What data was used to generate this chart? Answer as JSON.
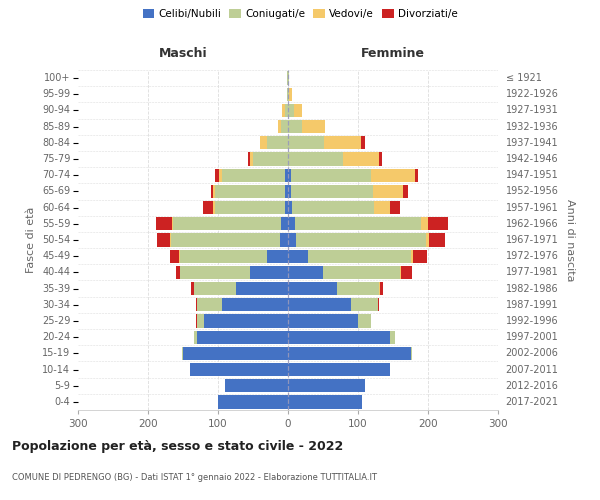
{
  "age_groups": [
    "0-4",
    "5-9",
    "10-14",
    "15-19",
    "20-24",
    "25-29",
    "30-34",
    "35-39",
    "40-44",
    "45-49",
    "50-54",
    "55-59",
    "60-64",
    "65-69",
    "70-74",
    "75-79",
    "80-84",
    "85-89",
    "90-94",
    "95-99",
    "100+"
  ],
  "birth_years": [
    "2017-2021",
    "2012-2016",
    "2007-2011",
    "2002-2006",
    "1997-2001",
    "1992-1996",
    "1987-1991",
    "1982-1986",
    "1977-1981",
    "1972-1976",
    "1967-1971",
    "1962-1966",
    "1957-1961",
    "1952-1956",
    "1947-1951",
    "1942-1946",
    "1937-1941",
    "1932-1936",
    "1927-1931",
    "1922-1926",
    "≤ 1921"
  ],
  "colors": {
    "celibi": "#4472C4",
    "coniugati": "#BECE96",
    "vedovi": "#F5C96A",
    "divorziati": "#CC2222"
  },
  "male": {
    "celibi": [
      100,
      90,
      140,
      150,
      130,
      120,
      95,
      75,
      55,
      30,
      12,
      10,
      5,
      4,
      4,
      0,
      0,
      0,
      0,
      0,
      0
    ],
    "coniugati": [
      0,
      0,
      0,
      2,
      5,
      10,
      35,
      60,
      100,
      125,
      155,
      155,
      100,
      100,
      90,
      50,
      30,
      10,
      5,
      2,
      1
    ],
    "vedovi": [
      0,
      0,
      0,
      0,
      0,
      0,
      0,
      0,
      0,
      1,
      2,
      1,
      2,
      3,
      5,
      5,
      10,
      5,
      3,
      0,
      0
    ],
    "divorziati": [
      0,
      0,
      0,
      0,
      0,
      1,
      2,
      3,
      5,
      12,
      18,
      22,
      15,
      3,
      5,
      2,
      0,
      0,
      0,
      0,
      0
    ]
  },
  "female": {
    "nubili": [
      105,
      110,
      145,
      175,
      145,
      100,
      90,
      70,
      50,
      28,
      12,
      10,
      5,
      4,
      4,
      0,
      0,
      0,
      0,
      0,
      0
    ],
    "coniugate": [
      0,
      0,
      0,
      2,
      8,
      18,
      38,
      60,
      110,
      148,
      185,
      180,
      118,
      118,
      115,
      78,
      52,
      20,
      8,
      2,
      1
    ],
    "vedove": [
      0,
      0,
      0,
      0,
      0,
      0,
      0,
      1,
      2,
      3,
      5,
      10,
      22,
      42,
      62,
      52,
      52,
      33,
      12,
      3,
      1
    ],
    "divorziate": [
      0,
      0,
      0,
      0,
      0,
      1,
      2,
      5,
      15,
      20,
      22,
      28,
      15,
      8,
      5,
      4,
      6,
      0,
      0,
      0,
      0
    ]
  },
  "title": "Popolazione per età, sesso e stato civile - 2022",
  "subtitle": "COMUNE DI PEDRENGO (BG) - Dati ISTAT 1° gennaio 2022 - Elaborazione TUTTITALIA.IT",
  "maschi_label": "Maschi",
  "femmine_label": "Femmine",
  "ylabel_left": "Fasce di età",
  "ylabel_right": "Anni di nascita",
  "xlim": 300,
  "xticks": [
    -300,
    -200,
    -100,
    0,
    100,
    200,
    300
  ],
  "xtick_labels": [
    "300",
    "200",
    "100",
    "0",
    "100",
    "200",
    "300"
  ],
  "legend_labels": [
    "Celibi/Nubili",
    "Coniugati/e",
    "Vedovi/e",
    "Divorziati/e"
  ],
  "bg_color": "#FFFFFF",
  "grid_color": "#DDDDDD"
}
